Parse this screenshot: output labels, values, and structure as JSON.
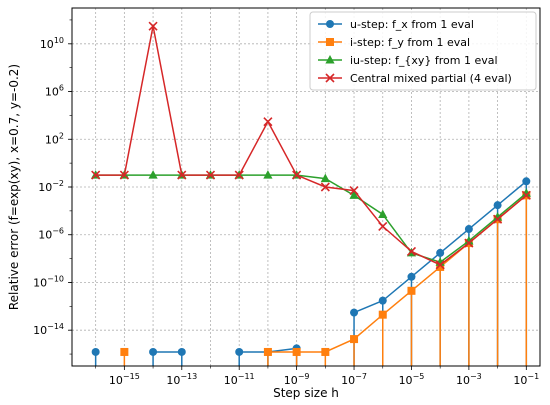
{
  "chart_data": {
    "type": "line",
    "title": "",
    "xlabel": "Step size h",
    "ylabel": "Relative error (f=exp(xy), x=0.7, y=-0.2)",
    "x_scale": "log",
    "y_scale": "log",
    "xlim": [
      1.5e-17,
      0.3
    ],
    "ylim": [
      1e-17,
      10000000000000.0
    ],
    "x_ticks": [
      {
        "base": "10",
        "exp": "−15",
        "value": 1e-15
      },
      {
        "base": "10",
        "exp": "−13",
        "value": 1e-13
      },
      {
        "base": "10",
        "exp": "−11",
        "value": 1e-11
      },
      {
        "base": "10",
        "exp": "−9",
        "value": 1e-09
      },
      {
        "base": "10",
        "exp": "−7",
        "value": 1e-07
      },
      {
        "base": "10",
        "exp": "−5",
        "value": 1e-05
      },
      {
        "base": "10",
        "exp": "−3",
        "value": 0.001
      },
      {
        "base": "10",
        "exp": "−1",
        "value": 0.1
      }
    ],
    "y_ticks": [
      {
        "base": "10",
        "exp": "−14",
        "value": 1e-14
      },
      {
        "base": "10",
        "exp": "−10",
        "value": 1e-10
      },
      {
        "base": "10",
        "exp": "−6",
        "value": 1e-06
      },
      {
        "base": "10",
        "exp": "−2",
        "value": 0.01
      },
      {
        "base": "10",
        "exp": "2",
        "value": 100.0
      },
      {
        "base": "10",
        "exp": "6",
        "value": 1000000.0
      },
      {
        "base": "10",
        "exp": "10",
        "value": 10000000000.0
      }
    ],
    "grid": true,
    "legend_position": "top-right",
    "series": [
      {
        "name": "u-step: f_x from 1 eval",
        "color": "#1f77b4",
        "marker": "circle",
        "stem_base": 1e-17,
        "x": [
          1e-16,
          1e-15,
          1e-14,
          1e-13,
          1e-12,
          1e-11,
          1e-10,
          1e-09,
          1e-08,
          1e-07,
          1e-06,
          1e-05,
          0.0001,
          0.001,
          0.01,
          0.1
        ],
        "y": [
          1.5e-16,
          null,
          1.5e-16,
          1.5e-16,
          null,
          1.5e-16,
          1.5e-16,
          3e-16,
          null,
          3e-13,
          3e-12,
          3e-10,
          3e-08,
          3e-06,
          0.0003,
          0.03
        ]
      },
      {
        "name": "i-step: f_y from 1 eval",
        "color": "#ff7f0e",
        "marker": "square",
        "stem_base": 1e-17,
        "x": [
          1e-16,
          1e-15,
          1e-14,
          1e-13,
          1e-12,
          1e-11,
          1e-10,
          1e-09,
          1e-08,
          1e-07,
          1e-06,
          1e-05,
          0.0001,
          0.001,
          0.01,
          0.1
        ],
        "y": [
          null,
          1.5e-16,
          null,
          null,
          null,
          null,
          1.5e-16,
          1.5e-16,
          1.5e-16,
          1.8e-15,
          2e-13,
          2e-11,
          2e-09,
          2e-07,
          2e-05,
          0.002
        ]
      },
      {
        "name": "iu-step: f_{xy} from 1 eval",
        "color": "#2ca02c",
        "marker": "triangle",
        "x": [
          1e-16,
          1e-15,
          1e-14,
          1e-13,
          1e-12,
          1e-11,
          1e-10,
          1e-09,
          1e-08,
          1e-07,
          1e-06,
          1e-05,
          0.0001,
          0.001,
          0.01,
          0.1
        ],
        "y": [
          0.1,
          0.1,
          0.1,
          0.1,
          0.1,
          0.1,
          0.1,
          0.1,
          0.05,
          0.002,
          5e-05,
          3e-08,
          5e-09,
          3e-07,
          3e-05,
          0.003
        ]
      },
      {
        "name": "Central mixed partial (4 eval)",
        "color": "#d62728",
        "marker": "x",
        "x": [
          1e-16,
          1e-15,
          1e-14,
          1e-13,
          1e-12,
          1e-11,
          1e-10,
          1e-09,
          1e-08,
          1e-07,
          1e-06,
          1e-05,
          0.0001,
          0.001,
          0.01,
          0.1
        ],
        "y": [
          0.1,
          0.1,
          300000000000.0,
          0.1,
          0.1,
          0.1,
          3000.0,
          0.1,
          0.01,
          0.005,
          5e-06,
          4e-08,
          3e-09,
          2e-07,
          2e-05,
          0.002
        ]
      }
    ]
  }
}
